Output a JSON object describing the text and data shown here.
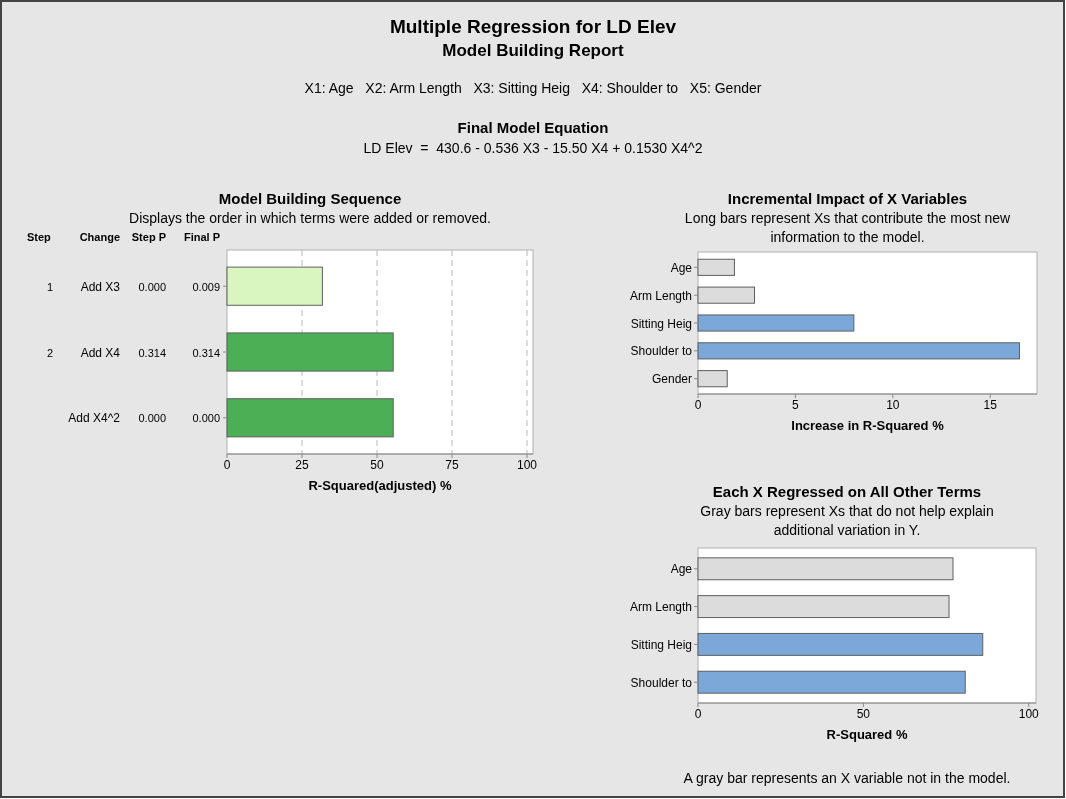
{
  "chart_data": [
    {
      "type": "other",
      "title": "Multiple Regression for LD Elev",
      "subtitle": "Model Building Report",
      "annotations": [
        "X1: Age   X2: Arm Length   X3: Sitting Heig   X4: Shoulder to   X5: Gender",
        "Final Model Equation",
        "LD Elev  =  430.6 - 0.536 X3 - 15.50 X4 + 0.1530 X4^2"
      ]
    },
    {
      "type": "bar",
      "orientation": "horizontal",
      "title": "Model Building Sequence",
      "subtitle": "Displays the order in which terms were added or removed.",
      "categories": [
        null,
        null,
        null
      ],
      "values": [
        31.8,
        55.4,
        55.4
      ],
      "colors": [
        "#d9f5c0",
        "#4daf55",
        "#4daf55"
      ],
      "xlim": [
        0,
        102
      ],
      "xticks": [
        0,
        25,
        50,
        75,
        100
      ],
      "xlabel": "R-Squared(adjusted) %",
      "grid": "x",
      "annotations": [
        "Step",
        "Change",
        "Step P",
        "Final P",
        "1",
        "Add X3",
        "0.000",
        "0.009",
        "2",
        "Add X4",
        "0.314",
        "0.314",
        "Add X4^2",
        "0.000",
        "0.000"
      ]
    },
    {
      "type": "bar",
      "orientation": "horizontal",
      "title": "Incremental Impact of X Variables",
      "subtitle": "Long bars represent Xs that contribute the most new information to the model.",
      "categories": [
        "Age",
        "Arm Length",
        "Sitting Heig",
        "Shoulder to",
        "Gender"
      ],
      "values": [
        1.87,
        2.9,
        8.0,
        16.5,
        1.5
      ],
      "colors": [
        "#dcdcdc",
        "#dcdcdc",
        "#7ba7d9",
        "#7ba7d9",
        "#dcdcdc"
      ],
      "xlim": [
        0,
        17.4
      ],
      "xticks": [
        0,
        5,
        10,
        15
      ],
      "xlabel": "Increase in R-Squared %"
    },
    {
      "type": "bar",
      "orientation": "horizontal",
      "title": "Each X Regressed on All Other Terms",
      "subtitle": "Gray bars represent Xs that do not help explain additional variation in Y.",
      "categories": [
        "Age",
        "Arm Length",
        "Sitting Heig",
        "Shoulder to"
      ],
      "values": [
        77.1,
        75.9,
        86.1,
        80.8
      ],
      "colors": [
        "#dcdcdc",
        "#dcdcdc",
        "#7ba7d9",
        "#7ba7d9"
      ],
      "xlim": [
        0,
        102.2
      ],
      "xticks": [
        0,
        50,
        100
      ],
      "xlabel": "R-Squared %",
      "annotations": [
        "A gray bar represents an X variable not in the model."
      ]
    }
  ]
}
